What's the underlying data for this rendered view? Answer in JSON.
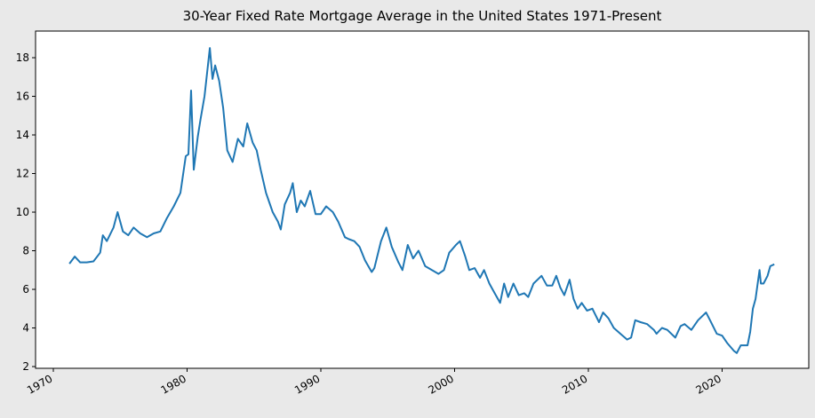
{
  "chart_data": {
    "type": "line",
    "title": "30-Year Fixed Rate Mortgage Average in the United States 1971-Present",
    "x": [
      1971.2,
      1971.6,
      1972.0,
      1972.5,
      1973.0,
      1973.5,
      1973.7,
      1974.0,
      1974.5,
      1974.8,
      1975.2,
      1975.6,
      1976.0,
      1976.5,
      1977.0,
      1977.5,
      1978.0,
      1978.5,
      1979.0,
      1979.5,
      1979.9,
      1980.1,
      1980.3,
      1980.5,
      1980.8,
      1981.0,
      1981.3,
      1981.7,
      1981.9,
      1982.1,
      1982.4,
      1982.7,
      1983.0,
      1983.4,
      1983.8,
      1984.2,
      1984.5,
      1984.9,
      1985.2,
      1985.5,
      1985.9,
      1986.1,
      1986.4,
      1986.8,
      1987.0,
      1987.3,
      1987.7,
      1987.9,
      1988.2,
      1988.5,
      1988.8,
      1989.2,
      1989.6,
      1990.0,
      1990.4,
      1990.9,
      1991.3,
      1991.8,
      1992.1,
      1992.5,
      1992.9,
      1993.3,
      1993.8,
      1994.0,
      1994.5,
      1994.9,
      1995.3,
      1995.8,
      1996.1,
      1996.5,
      1996.9,
      1997.3,
      1997.8,
      1998.3,
      1998.8,
      1999.2,
      1999.6,
      2000.1,
      2000.4,
      2000.8,
      2001.1,
      2001.5,
      2001.9,
      2002.2,
      2002.6,
      2003.0,
      2003.4,
      2003.7,
      2004.0,
      2004.4,
      2004.8,
      2005.2,
      2005.5,
      2005.9,
      2006.5,
      2006.9,
      2007.3,
      2007.6,
      2007.9,
      2008.2,
      2008.6,
      2008.9,
      2009.2,
      2009.5,
      2009.9,
      2010.3,
      2010.8,
      2011.1,
      2011.5,
      2011.9,
      2012.4,
      2012.9,
      2013.2,
      2013.5,
      2013.9,
      2014.4,
      2014.9,
      2015.1,
      2015.5,
      2015.9,
      2016.5,
      2016.9,
      2017.2,
      2017.7,
      2018.2,
      2018.8,
      2019.1,
      2019.6,
      2020.0,
      2020.4,
      2020.9,
      2021.1,
      2021.4,
      2021.9,
      2022.1,
      2022.3,
      2022.5,
      2022.8,
      2022.9,
      2023.1,
      2023.4,
      2023.6,
      2023.9
    ],
    "series": [
      {
        "color": "#1f77b4",
        "values": [
          7.33,
          7.7,
          7.4,
          7.4,
          7.45,
          7.9,
          8.8,
          8.5,
          9.2,
          10.0,
          9.0,
          8.8,
          9.2,
          8.9,
          8.7,
          8.9,
          9.0,
          9.7,
          10.3,
          11.0,
          12.9,
          13.0,
          16.3,
          12.2,
          13.9,
          14.8,
          16.0,
          18.5,
          16.9,
          17.6,
          16.8,
          15.4,
          13.2,
          12.6,
          13.8,
          13.4,
          14.6,
          13.6,
          13.2,
          12.2,
          11.0,
          10.6,
          10.0,
          9.5,
          9.1,
          10.4,
          11.0,
          11.5,
          10.0,
          10.6,
          10.3,
          11.1,
          9.9,
          9.9,
          10.3,
          10.0,
          9.5,
          8.7,
          8.6,
          8.5,
          8.2,
          7.5,
          6.9,
          7.1,
          8.5,
          9.2,
          8.2,
          7.4,
          7.0,
          8.3,
          7.6,
          8.0,
          7.2,
          7.0,
          6.8,
          7.0,
          7.9,
          8.3,
          8.5,
          7.7,
          7.0,
          7.1,
          6.6,
          7.0,
          6.3,
          5.8,
          5.3,
          6.3,
          5.6,
          6.3,
          5.7,
          5.8,
          5.6,
          6.3,
          6.7,
          6.2,
          6.2,
          6.7,
          6.1,
          5.7,
          6.5,
          5.5,
          5.0,
          5.3,
          4.9,
          5.0,
          4.3,
          4.8,
          4.5,
          4.0,
          3.7,
          3.4,
          3.5,
          4.4,
          4.3,
          4.2,
          3.9,
          3.7,
          4.0,
          3.9,
          3.5,
          4.1,
          4.2,
          3.9,
          4.4,
          4.8,
          4.4,
          3.7,
          3.6,
          3.2,
          2.8,
          2.7,
          3.1,
          3.1,
          3.8,
          5.0,
          5.5,
          7.0,
          6.3,
          6.3,
          6.7,
          7.2,
          7.3
        ]
      }
    ],
    "xlim": [
      1968.67,
      2026.48
    ],
    "xticks": [
      1970,
      1980,
      1990,
      2000,
      2010,
      2020
    ],
    "ylim": [
      1.91,
      19.38
    ],
    "yticks": [
      2,
      4,
      6,
      8,
      10,
      12,
      14,
      16,
      18
    ]
  }
}
